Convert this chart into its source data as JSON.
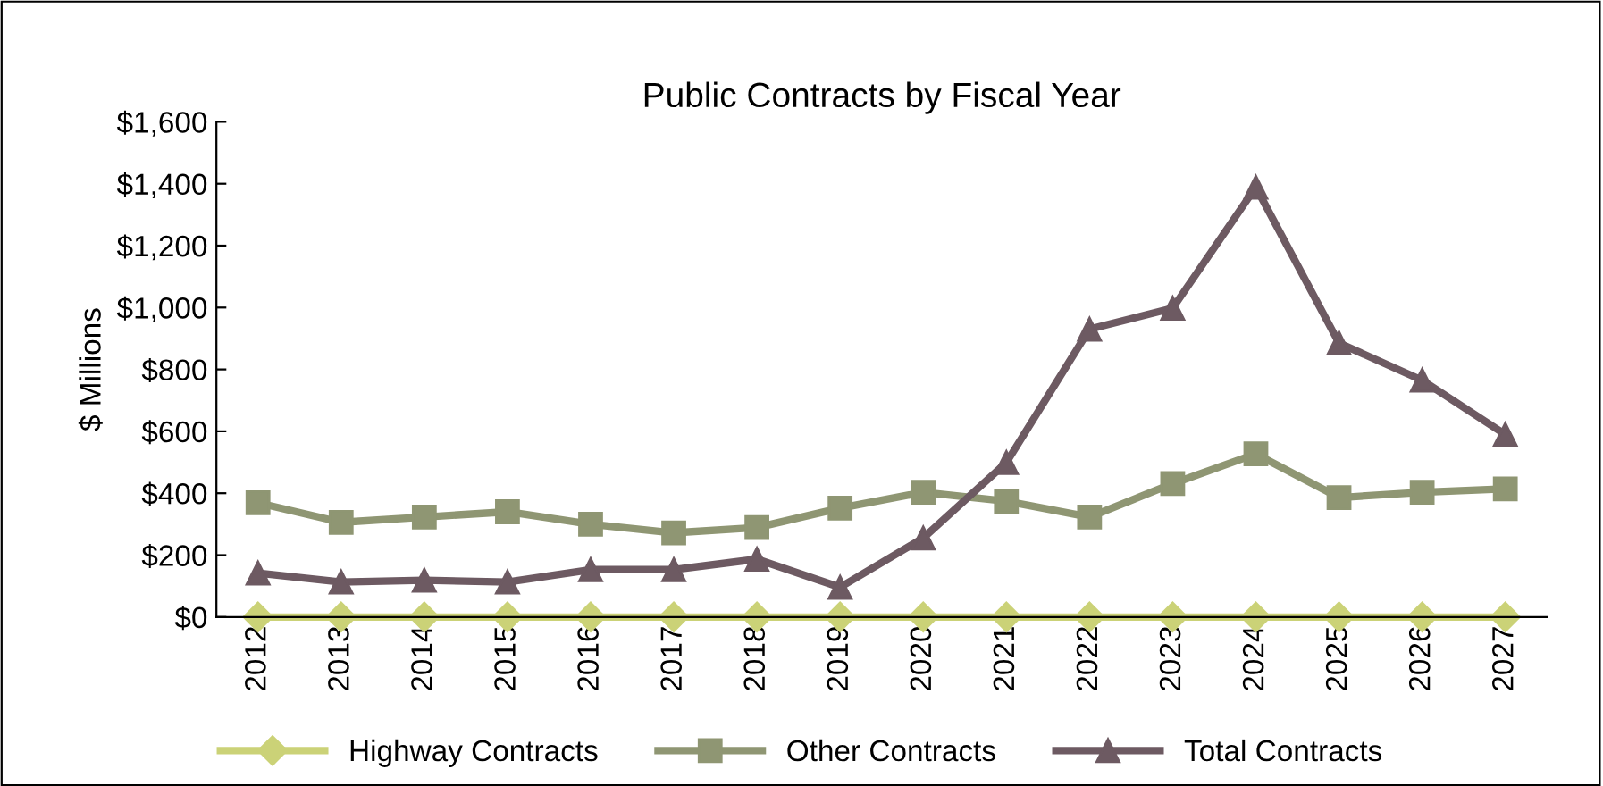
{
  "chart_data": {
    "type": "line",
    "title": "Public Contracts by Fiscal Year",
    "ylabel": "$ Millions",
    "categories": [
      "2012",
      "2013",
      "2014",
      "2015",
      "2016",
      "2017",
      "2018",
      "2019",
      "2020",
      "2021",
      "2022",
      "2023",
      "2024",
      "2025",
      "2026",
      "2027"
    ],
    "series": [
      {
        "name": "Highway Contracts",
        "color": "#cbd277",
        "marker": "diamond",
        "values": [
          0,
          0,
          0,
          0,
          0,
          0,
          0,
          0,
          0,
          0,
          0,
          0,
          0,
          0,
          0,
          0
        ]
      },
      {
        "name": "Other Contracts",
        "color": "#8f9673",
        "marker": "square",
        "values": [
          369,
          306,
          323,
          340,
          300,
          272,
          289,
          352,
          403,
          374,
          323,
          431,
          527,
          386,
          403,
          414
        ]
      },
      {
        "name": "Total Contracts",
        "color": "#6d5a62",
        "marker": "triangle",
        "values": [
          142,
          113,
          119,
          113,
          153,
          153,
          187,
          96,
          255,
          499,
          930,
          998,
          1389,
          885,
          765,
          590
        ]
      }
    ],
    "ylim": [
      0,
      1600
    ],
    "yticks": [
      {
        "value": 0,
        "label": "$0"
      },
      {
        "value": 200,
        "label": "$200"
      },
      {
        "value": 400,
        "label": "$400"
      },
      {
        "value": 600,
        "label": "$600"
      },
      {
        "value": 800,
        "label": "$800"
      },
      {
        "value": 1000,
        "label": "$1,000"
      },
      {
        "value": 1200,
        "label": "$1,200"
      },
      {
        "value": 1400,
        "label": "$1,400"
      },
      {
        "value": 1600,
        "label": "$1,600"
      }
    ],
    "grid": false,
    "legend": "bottom"
  }
}
